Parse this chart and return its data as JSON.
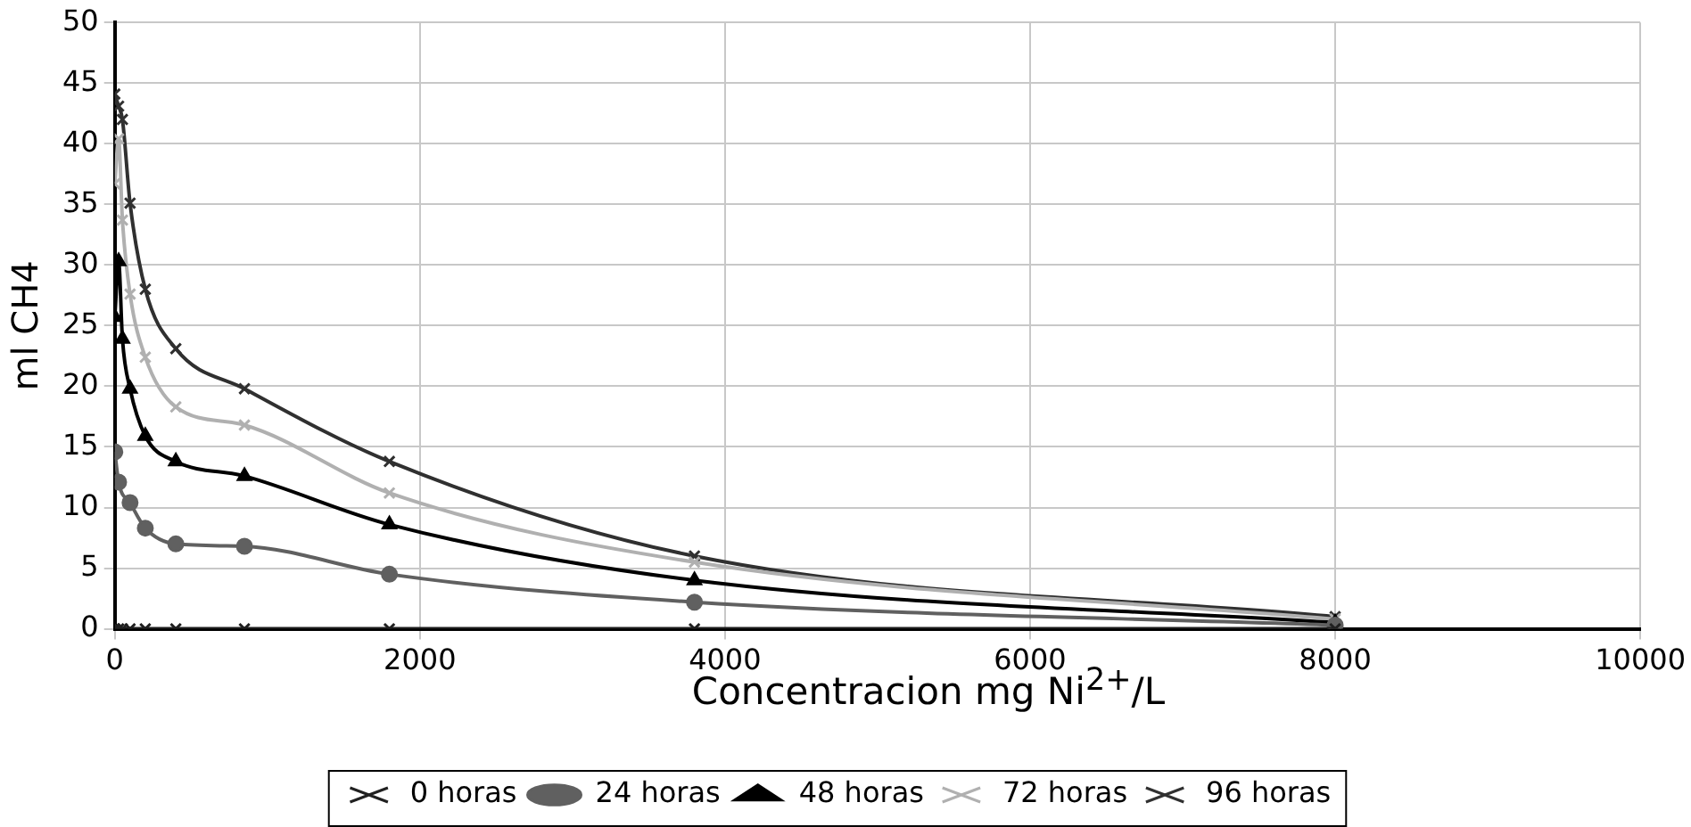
{
  "chart_data": {
    "type": "line",
    "xlabel": "Concentracion mg Ni$^{2+}$/L",
    "ylabel": "ml CH4",
    "xlim": [
      0,
      10000
    ],
    "xticks": [
      0,
      2000,
      4000,
      6000,
      8000,
      10000
    ],
    "ylim": [
      0,
      50
    ],
    "yticks": [
      0,
      5,
      10,
      15,
      20,
      25,
      30,
      35,
      40,
      45,
      50
    ],
    "grid": true,
    "legend": "bottom",
    "series": [
      {
        "name": "0 horas",
        "color": "#202020",
        "marker": "cross",
        "x": [
          0,
          25,
          50,
          100,
          200,
          400,
          850,
          1800,
          3800,
          8000
        ],
        "values": [
          0,
          0,
          0,
          0,
          0,
          0,
          0,
          0,
          0,
          0
        ]
      },
      {
        "name": "24 horas",
        "color": "#606060",
        "marker": "circle",
        "x": [
          0,
          25,
          100,
          200,
          400,
          850,
          1800,
          3800,
          8000
        ],
        "values": [
          14.6,
          12.1,
          10.4,
          8.3,
          7,
          6.8,
          4.5,
          2.2,
          0.3
        ]
      },
      {
        "name": "48 horas",
        "color": "#000000",
        "marker": "triangle",
        "x": [
          0,
          25,
          50,
          100,
          200,
          400,
          850,
          1800,
          3800,
          8000
        ],
        "values": [
          25.7,
          30.3,
          23.9,
          19.8,
          15.9,
          13.8,
          12.6,
          8.6,
          4,
          0.5
        ]
      },
      {
        "name": "72 horas",
        "color": "#b0b0b0",
        "marker": "cross",
        "x": [
          0,
          25,
          50,
          100,
          200,
          400,
          850,
          1800,
          3800,
          8000
        ],
        "values": [
          36.7,
          40.4,
          33.7,
          27.6,
          22.4,
          18.3,
          16.8,
          11.2,
          5.5,
          0.8
        ]
      },
      {
        "name": "96 horas",
        "color": "#303030",
        "marker": "cross",
        "x": [
          0,
          25,
          50,
          100,
          200,
          400,
          850,
          1800,
          3800,
          8000
        ],
        "values": [
          44.1,
          43.1,
          42,
          35.1,
          28,
          23.1,
          19.8,
          13.8,
          6,
          1
        ]
      }
    ]
  }
}
